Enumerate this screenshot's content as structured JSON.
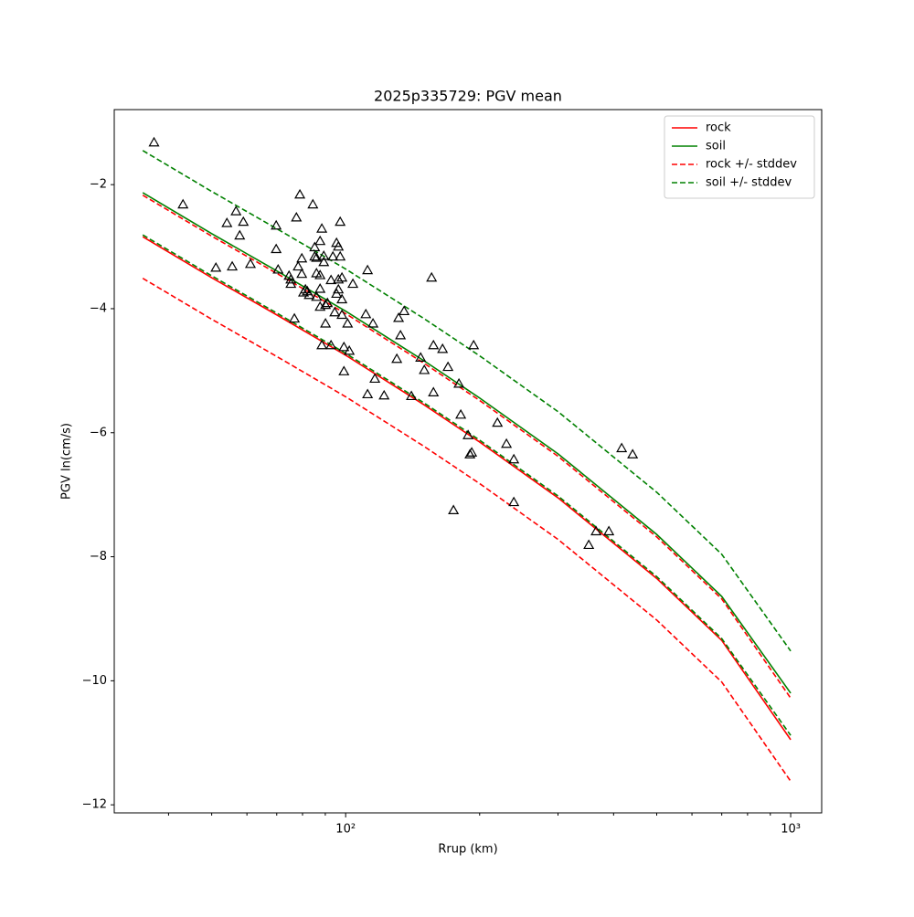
{
  "chart_data": {
    "type": "scatter-line",
    "title": "2025p335729: PGV mean",
    "xlabel": "Rrup (km)",
    "ylabel": "PGV ln(cm/s)",
    "xscale": "log",
    "xlim": [
      30.2,
      1174
    ],
    "ylim": [
      -12.13,
      -0.79
    ],
    "xticks": [
      {
        "value": 100,
        "label": "10²"
      },
      {
        "value": 1000,
        "label": "10³"
      }
    ],
    "yticks": [
      {
        "value": -12,
        "label": "−12"
      },
      {
        "value": -10,
        "label": "−10"
      },
      {
        "value": -8,
        "label": "−8"
      },
      {
        "value": -6,
        "label": "−6"
      },
      {
        "value": -4,
        "label": "−4"
      },
      {
        "value": -2,
        "label": "−2"
      }
    ],
    "legend": "upper right",
    "lines": {
      "x": [
        35,
        50,
        70,
        100,
        150,
        200,
        300,
        500,
        700,
        1000
      ],
      "series": [
        {
          "name": "rock",
          "color": "#ff0000",
          "dashed": false,
          "values": [
            -2.84,
            -3.5,
            -4.1,
            -4.75,
            -5.55,
            -6.15,
            -7.05,
            -8.35,
            -9.35,
            -10.95
          ]
        },
        {
          "name": "soil",
          "color": "#008000",
          "dashed": false,
          "values": [
            -2.13,
            -2.79,
            -3.39,
            -4.04,
            -4.84,
            -5.44,
            -6.34,
            -7.64,
            -8.64,
            -10.2
          ]
        },
        {
          "name": "rock +/- stddev",
          "color": "#ff0000",
          "dashed": true,
          "upper": [
            -2.17,
            -2.83,
            -3.43,
            -4.08,
            -4.88,
            -5.48,
            -6.38,
            -7.68,
            -8.68,
            -10.28
          ],
          "lower": [
            -3.51,
            -4.17,
            -4.77,
            -5.42,
            -6.22,
            -6.82,
            -7.72,
            -9.02,
            -10.02,
            -11.62
          ]
        },
        {
          "name": "soil +/- stddev",
          "color": "#008000",
          "dashed": true,
          "upper": [
            -1.45,
            -2.11,
            -2.71,
            -3.36,
            -4.16,
            -4.76,
            -5.66,
            -6.96,
            -7.96,
            -9.52
          ],
          "lower": [
            -2.81,
            -3.47,
            -4.07,
            -4.72,
            -5.52,
            -6.12,
            -7.02,
            -8.32,
            -9.32,
            -10.88
          ]
        }
      ]
    },
    "observations": {
      "color": "#000000",
      "x": [
        37.1,
        43.1,
        51.1,
        54.1,
        55.6,
        56.7,
        57.8,
        58.9,
        61.1,
        69.8,
        69.8,
        70.5,
        74.6,
        75.3,
        75.3,
        76.7,
        77.5,
        78.2,
        78.9,
        79.7,
        79.7,
        80.4,
        81.2,
        82.0,
        82.8,
        84.4,
        85.2,
        85.2,
        86.0,
        86.0,
        86.0,
        87.6,
        87.6,
        87.6,
        87.6,
        88.4,
        88.4,
        89.3,
        89.3,
        90.1,
        90.1,
        91.0,
        92.7,
        92.7,
        93.6,
        94.5,
        95.4,
        95.4,
        96.3,
        96.3,
        96.3,
        97.2,
        97.2,
        98.1,
        98.1,
        98.1,
        99.1,
        99.1,
        101,
        101.9,
        103.8,
        111,
        112,
        112,
        115.2,
        116.3,
        122,
        130.3,
        131.5,
        132.8,
        135.3,
        140.5,
        147.4,
        150.2,
        156,
        157.5,
        157.5,
        165.1,
        169.8,
        179.7,
        181.4,
        188.4,
        190.2,
        192,
        193.9,
        219.3,
        229.8,
        238.7,
        238.7,
        174.7,
        351.8,
        365.3,
        390.3,
        417.1,
        441.4
      ],
      "values": [
        -1.32,
        -2.32,
        -3.34,
        -2.62,
        -3.32,
        -2.43,
        -2.82,
        -2.6,
        -3.28,
        -2.66,
        -3.04,
        -3.37,
        -3.47,
        -3.53,
        -3.6,
        -4.16,
        -2.53,
        -3.32,
        -2.16,
        -3.19,
        -3.44,
        -3.74,
        -3.69,
        -3.72,
        -3.78,
        -2.32,
        -3.16,
        -3.01,
        -3.18,
        -3.43,
        -3.81,
        -2.91,
        -3.46,
        -3.68,
        -3.97,
        -2.71,
        -4.59,
        -3.25,
        -3.15,
        -3.94,
        -4.24,
        -3.91,
        -4.59,
        -3.54,
        -3.16,
        -4.06,
        -2.94,
        -3.76,
        -3.0,
        -3.69,
        -3.53,
        -3.16,
        -2.6,
        -3.5,
        -4.1,
        -3.85,
        -5.01,
        -4.62,
        -4.24,
        -4.68,
        -3.6,
        -4.09,
        -3.38,
        -5.38,
        -4.24,
        -5.13,
        -5.4,
        -4.81,
        -4.15,
        -4.43,
        -4.04,
        -5.41,
        -4.79,
        -4.99,
        -3.5,
        -4.59,
        -5.35,
        -4.65,
        -4.94,
        -5.21,
        -5.71,
        -6.04,
        -6.35,
        -6.32,
        -4.59,
        -5.84,
        -6.18,
        -6.43,
        -7.12,
        -7.25,
        -7.81,
        -7.59,
        -7.59,
        -6.25,
        -6.35
      ]
    }
  }
}
